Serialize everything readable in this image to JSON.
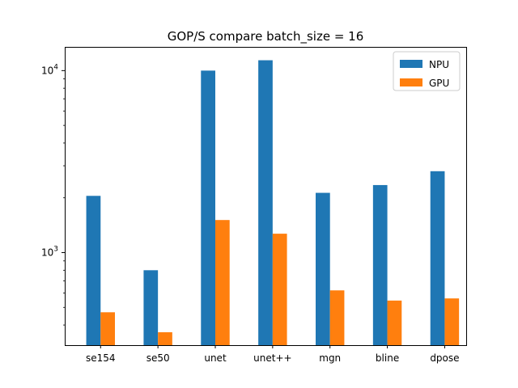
{
  "chart_data": {
    "type": "bar",
    "title": "GOP/S compare  batch_size = 16",
    "xlabel": "",
    "ylabel": "",
    "yscale": "log",
    "ylim": [
      310,
      13500
    ],
    "y_major_ticks": [
      {
        "value": 1000,
        "base": "10",
        "exp": "3"
      },
      {
        "value": 10000,
        "base": "10",
        "exp": "4"
      }
    ],
    "categories": [
      "se154",
      "se50",
      "unet",
      "unet++",
      "mgn",
      "bline",
      "dpose"
    ],
    "series": [
      {
        "name": "NPU",
        "color": "#1f77b4",
        "values": [
          2050,
          800,
          10000,
          11400,
          2130,
          2350,
          2800
        ]
      },
      {
        "name": "GPU",
        "color": "#ff7f0e",
        "values": [
          470,
          365,
          1510,
          1270,
          620,
          545,
          560
        ]
      }
    ],
    "legend_position": "upper right",
    "grid": false
  }
}
